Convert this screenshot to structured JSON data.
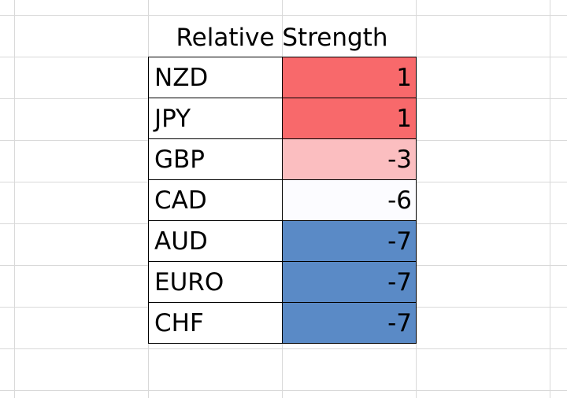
{
  "title": "Relative Strength",
  "rows": [
    {
      "currency": "NZD",
      "value": "1",
      "color": "#f8696b"
    },
    {
      "currency": "JPY",
      "value": "1",
      "color": "#f8696b"
    },
    {
      "currency": "GBP",
      "value": "-3",
      "color": "#fbbec0"
    },
    {
      "currency": "CAD",
      "value": "-6",
      "color": "#fcfcff"
    },
    {
      "currency": "AUD",
      "value": "-7",
      "color": "#5a8ac6"
    },
    {
      "currency": "EURO",
      "value": "-7",
      "color": "#5a8ac6"
    },
    {
      "currency": "CHF",
      "value": "-7",
      "color": "#5a8ac6"
    }
  ]
}
